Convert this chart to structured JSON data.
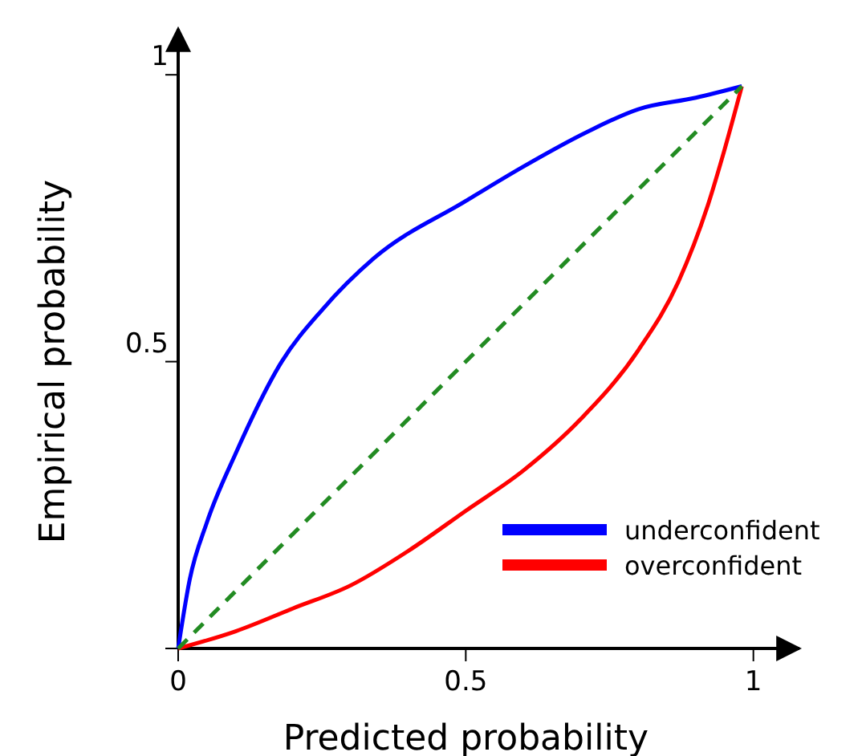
{
  "chart_data": {
    "type": "line",
    "xlabel": "Predicted probability",
    "ylabel": "Empirical probability",
    "xlim": [
      0,
      1.08
    ],
    "ylim": [
      0,
      1.08
    ],
    "xticks": [
      0,
      0.5,
      1
    ],
    "yticks": [
      {
        "value": 0,
        "label": null
      },
      0.5,
      1
    ],
    "grid": false,
    "legend": "bottom right",
    "marker": "none",
    "series": [
      {
        "name": "underconfident",
        "color": "#0000ff",
        "x": [
          0,
          0.02,
          0.05,
          0.1,
          0.18,
          0.25,
          0.34,
          0.5,
          0.6,
          0.71,
          0.8,
          0.9,
          0.98
        ],
        "values": [
          0,
          0.12,
          0.22,
          0.34,
          0.5,
          0.59,
          0.68,
          0.78,
          0.84,
          0.9,
          0.94,
          0.96,
          0.98
        ]
      },
      {
        "name": "overconfident",
        "color": "#ff0000",
        "x": [
          0,
          0.1,
          0.2,
          0.3,
          0.4,
          0.5,
          0.6,
          0.7,
          0.8,
          0.87,
          0.92,
          0.95,
          0.98
        ],
        "values": [
          0,
          0.03,
          0.07,
          0.11,
          0.17,
          0.24,
          0.31,
          0.4,
          0.52,
          0.64,
          0.77,
          0.87,
          0.98
        ]
      },
      {
        "color": "#228b22",
        "line_style": "dashed",
        "x": [
          0,
          0.98
        ],
        "values": [
          0,
          0.98
        ]
      }
    ]
  }
}
